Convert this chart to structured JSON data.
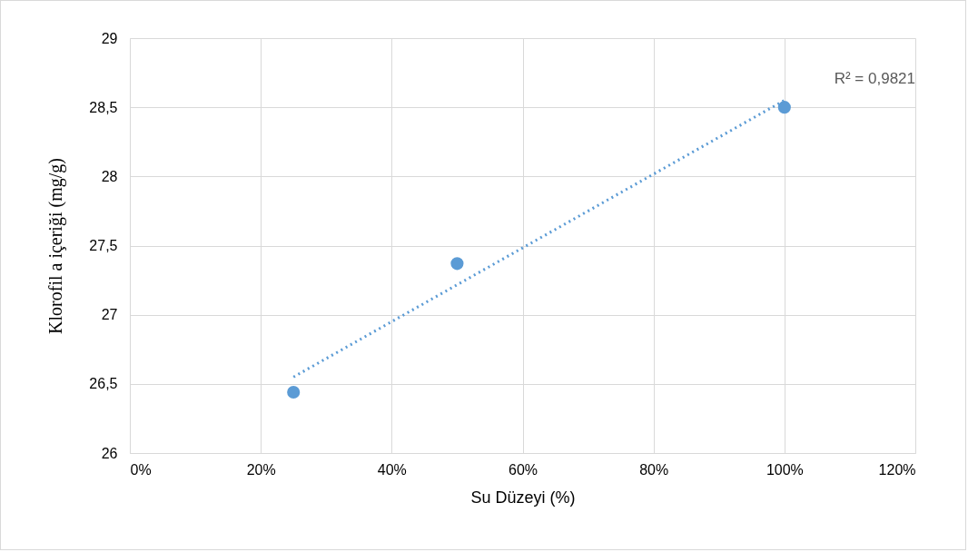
{
  "chart_data": {
    "type": "scatter",
    "xlabel": "Su Düzeyi (%)",
    "ylabel": "Klorofil a içeriği (mg/g)",
    "x": [
      0.25,
      0.5,
      1.0
    ],
    "series": [
      {
        "color": "#5b9bd5",
        "values": [
          26.44,
          27.37,
          28.5
        ],
        "marker": "circle"
      },
      {
        "type": "line",
        "color": "#5b9bd5",
        "x": [
          0.25,
          1.0
        ],
        "values": [
          26.55,
          28.55
        ],
        "line_style": "dotted",
        "marker": "none"
      }
    ],
    "xlim": [
      0,
      1.2
    ],
    "xticks": [
      {
        "value": 0,
        "label": "0%"
      },
      {
        "value": 0.2,
        "label": "20%"
      },
      {
        "value": 0.4,
        "label": "40%"
      },
      {
        "value": 0.6,
        "label": "60%"
      },
      {
        "value": 0.8,
        "label": "80%"
      },
      {
        "value": 1.0,
        "label": "100%"
      },
      {
        "value": 1.2,
        "label": "120%"
      }
    ],
    "ylim": [
      26,
      29
    ],
    "yticks": [
      26,
      {
        "value": 26.5,
        "label": "26,5"
      },
      27,
      {
        "value": 27.5,
        "label": "27,5"
      },
      28,
      {
        "value": 28.5,
        "label": "28,5"
      },
      29
    ],
    "annotations": [
      "R² = 0,9821"
    ],
    "grid": true
  }
}
